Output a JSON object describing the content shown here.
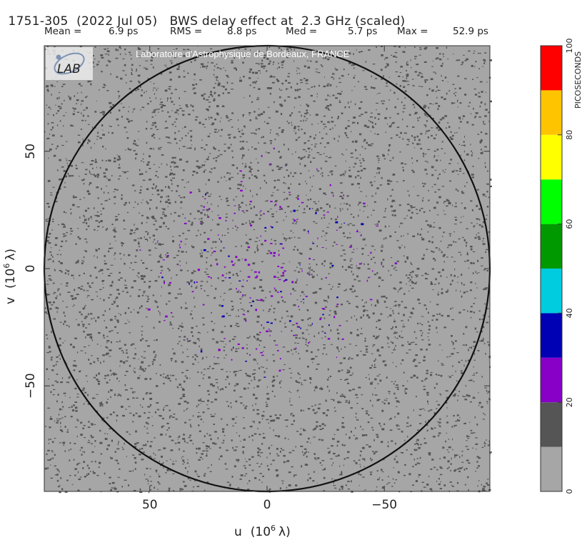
{
  "header": {
    "source": "1751-305",
    "date": "(2022 Jul 05)",
    "effect": "BWS delay effect at",
    "freq": "2.3 GHz (scaled)"
  },
  "stats": {
    "mean_label": "Mean =",
    "mean_value": "6.9 ps",
    "rms_label": "RMS =",
    "rms_value": "8.8 ps",
    "med_label": "Med =",
    "med_value": "5.7 ps",
    "max_label": "Max =",
    "max_value": "52.9 ps"
  },
  "credit": "Laboratoire d'Astrophysique de Bordeaux, FRANCE",
  "logo_text": "LAB",
  "chart_data": {
    "type": "heatmap",
    "xlabel_prefix": "u",
    "xlabel_unit": "(10",
    "xlabel_exp": "6",
    "xlabel_sym": "λ)",
    "ylabel_prefix": "v",
    "ylabel_unit": "(10",
    "ylabel_exp": "6",
    "ylabel_sym": "λ)",
    "xlim": [
      95,
      -95
    ],
    "ylim": [
      -95,
      95
    ],
    "x_ticks": [
      50,
      0,
      -50
    ],
    "x_tick_labels": [
      "50",
      "0",
      "−50"
    ],
    "y_ticks": [
      50,
      0,
      -50
    ],
    "y_tick_labels": [
      "50",
      "0",
      "−50"
    ],
    "circle_radius": 95,
    "colorbar": {
      "label": "PICOSECONDS",
      "min": 0,
      "max": 100,
      "ticks": [
        0,
        20,
        40,
        60,
        80,
        100
      ],
      "bins": [
        {
          "from": 0,
          "to": 10,
          "color": "#a6a6a6"
        },
        {
          "from": 10,
          "to": 20,
          "color": "#555555"
        },
        {
          "from": 20,
          "to": 30,
          "color": "#8800c8"
        },
        {
          "from": 30,
          "to": 40,
          "color": "#0000b4"
        },
        {
          "from": 40,
          "to": 50,
          "color": "#00cce0"
        },
        {
          "from": 50,
          "to": 60,
          "color": "#009900"
        },
        {
          "from": 60,
          "to": 70,
          "color": "#00ff00"
        },
        {
          "from": 70,
          "to": 80,
          "color": "#ffff00"
        },
        {
          "from": 80,
          "to": 90,
          "color": "#ffc400"
        },
        {
          "from": 90,
          "to": 100,
          "color": "#ff0000"
        }
      ]
    },
    "background_color": "#a6a6a6"
  }
}
